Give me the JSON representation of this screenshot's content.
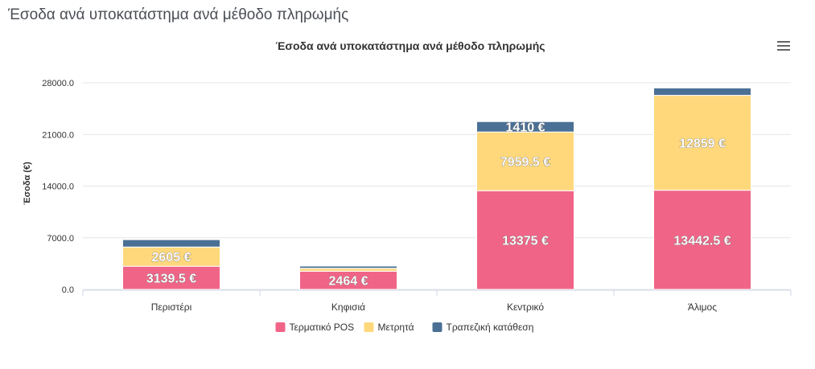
{
  "page": {
    "title": "Έσοδα ανά υποκατάστημα ανά μέθοδο πληρωμής"
  },
  "chart_data": {
    "type": "bar",
    "stacked": true,
    "title": "Έσοδα ανά υποκατάστημα ανά μέθοδο πληρωμής",
    "xlabel": "",
    "ylabel": "Έσοδα (€)",
    "ylim": [
      0,
      28000
    ],
    "yticks": [
      "0.0",
      "7000.0",
      "14000.0",
      "21000.0",
      "28000.0"
    ],
    "ytick_values": [
      0,
      7000,
      14000,
      21000,
      28000
    ],
    "categories": [
      "Περιστέρι",
      "Κηφισιά",
      "Κεντρικό",
      "Άλιμος"
    ],
    "grid": true,
    "legend_position": "bottom",
    "series": [
      {
        "name": "Τερματικό POS",
        "color": "#f06587",
        "values": [
          3139.5,
          2464,
          13375,
          13442.5
        ],
        "labels": [
          "3139.5 €",
          "2464 €",
          "13375 €",
          "13442.5 €"
        ]
      },
      {
        "name": "Μετρητά",
        "color": "#ffd87c",
        "values": [
          2605,
          400,
          7959.5,
          12859
        ],
        "labels": [
          "2605 €",
          "",
          "7959.5 €",
          "12859 €"
        ]
      },
      {
        "name": "Τραπεζική κατάθεση",
        "color": "#4b7095",
        "values": [
          1000,
          300,
          1410,
          1000
        ],
        "labels": [
          "",
          "",
          "1410 €",
          ""
        ]
      }
    ]
  },
  "toolbar": {
    "menu_icon": "hamburger-menu-icon"
  }
}
